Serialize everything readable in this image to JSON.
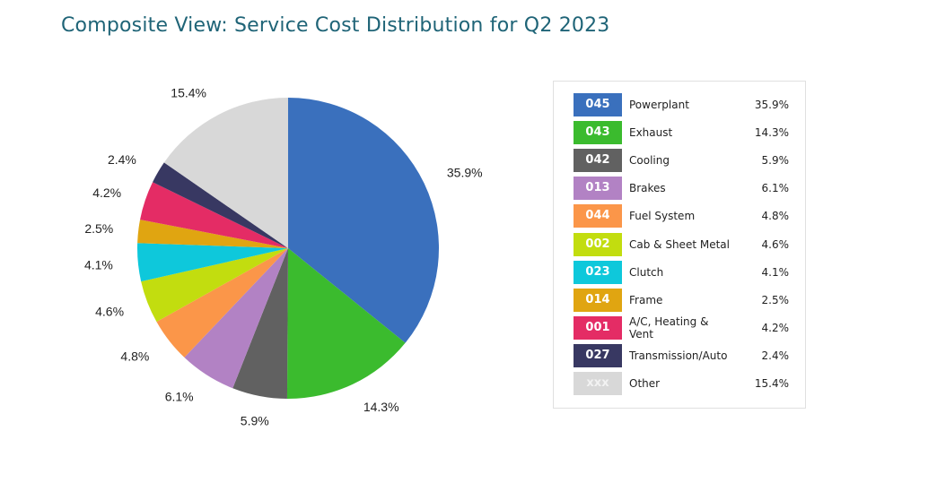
{
  "title": "Composite View: Service Cost Distribution for Q2 2023",
  "chart_data": {
    "type": "pie",
    "title": "Composite View: Service Cost Distribution for Q2 2023",
    "start_angle_deg": 0,
    "direction": "clockwise",
    "slices": [
      {
        "code": "045",
        "name": "Powerplant",
        "value": 35.9,
        "label": "35.9%",
        "color": "#3a70bd"
      },
      {
        "code": "043",
        "name": "Exhaust",
        "value": 14.3,
        "label": "14.3%",
        "color": "#3bbb2e"
      },
      {
        "code": "042",
        "name": "Cooling",
        "value": 5.9,
        "label": "5.9%",
        "color": "#616161"
      },
      {
        "code": "013",
        "name": "Brakes",
        "value": 6.1,
        "label": "6.1%",
        "color": "#b282c4"
      },
      {
        "code": "044",
        "name": "Fuel System",
        "value": 4.8,
        "label": "4.8%",
        "color": "#fb9649"
      },
      {
        "code": "002",
        "name": "Cab & Sheet Metal",
        "value": 4.6,
        "label": "4.6%",
        "color": "#c2dd0f"
      },
      {
        "code": "023",
        "name": "Clutch",
        "value": 4.1,
        "label": "4.1%",
        "color": "#0ec8db"
      },
      {
        "code": "014",
        "name": "Frame",
        "value": 2.5,
        "label": "2.5%",
        "color": "#e0a511"
      },
      {
        "code": "001",
        "name": "A/C, Heating & Vent",
        "value": 4.2,
        "label": "4.2%",
        "color": "#e42c65"
      },
      {
        "code": "027",
        "name": "Transmission/Auto",
        "value": 2.4,
        "label": "2.4%",
        "color": "#383862"
      },
      {
        "code": "xxx",
        "name": "Other",
        "value": 15.4,
        "label": "15.4%",
        "color": "#d8d8d8"
      }
    ],
    "legend_placement": "right"
  }
}
